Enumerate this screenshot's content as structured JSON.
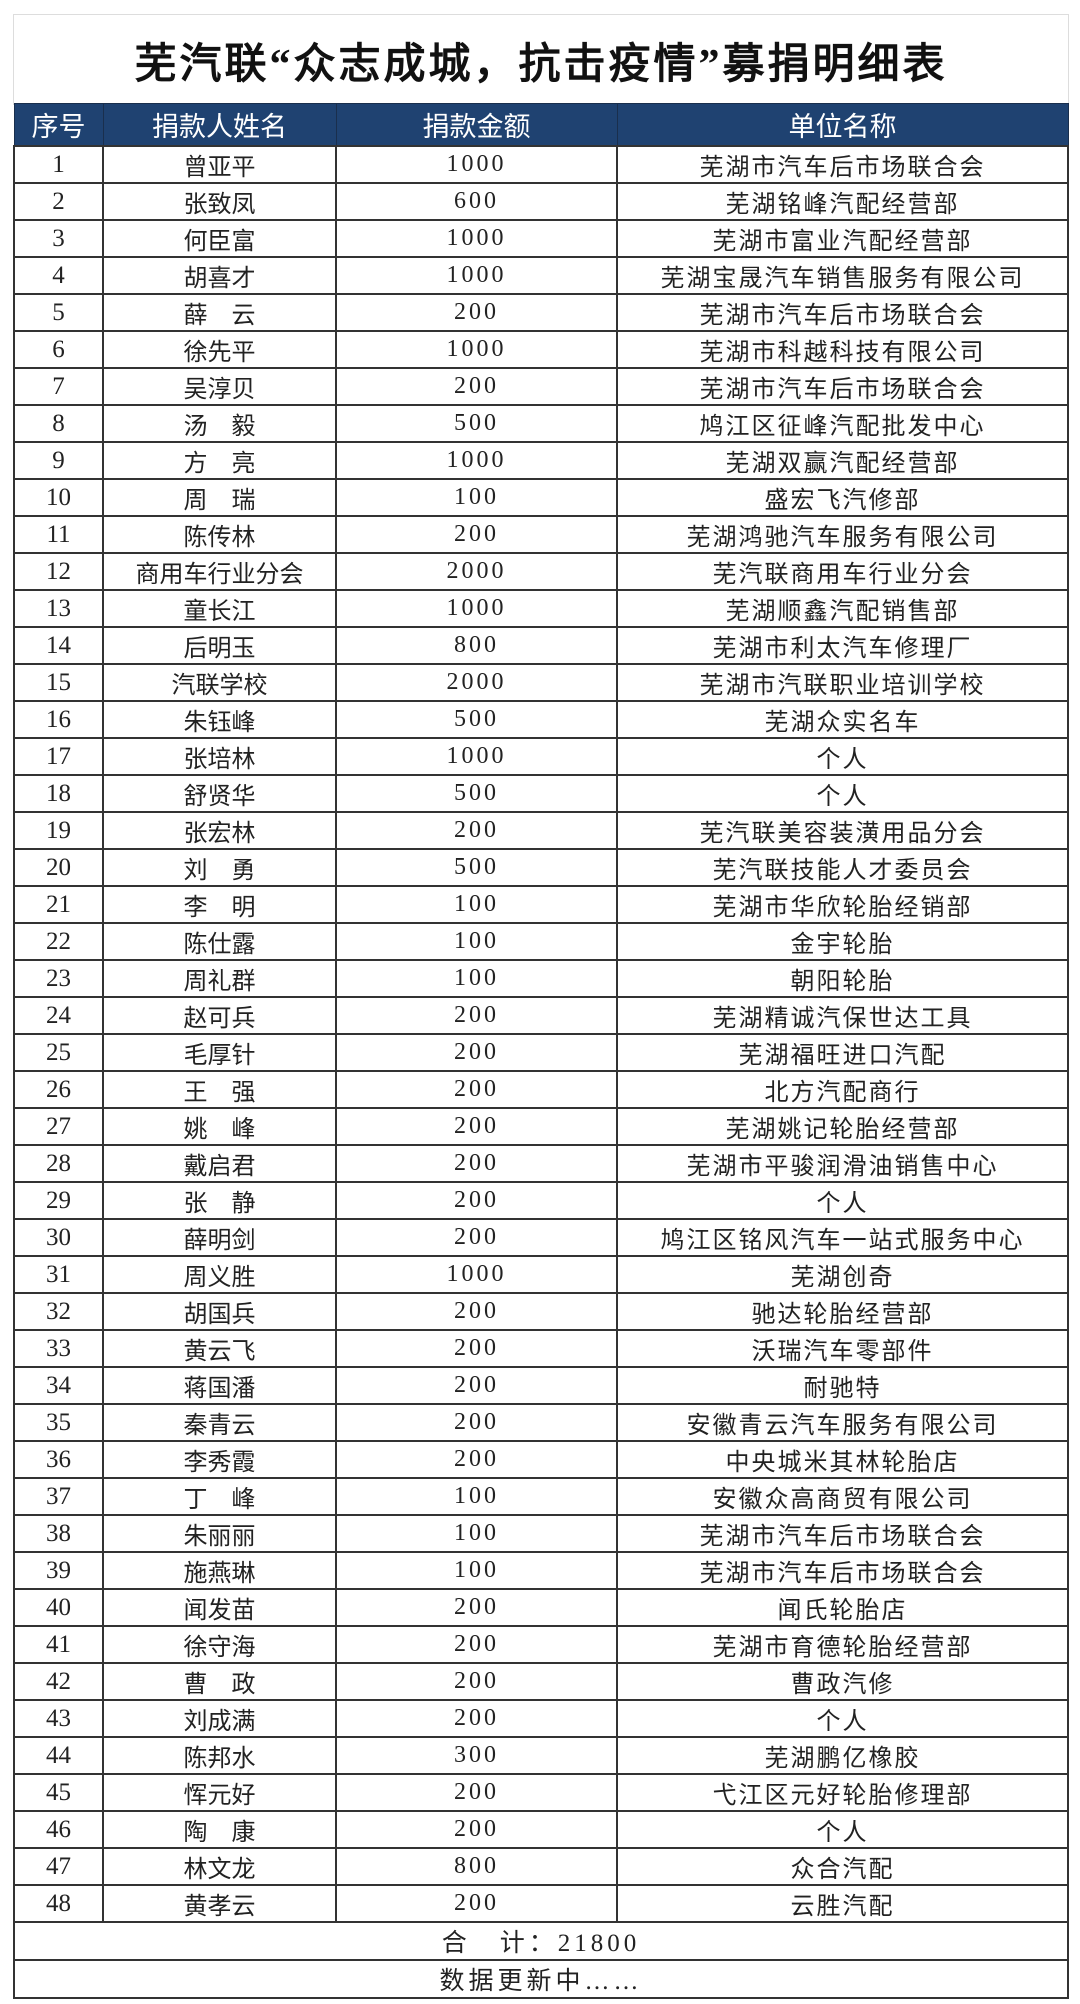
{
  "title": "芜汽联“众志成城，抗击疫情”募捐明细表",
  "columns": [
    "序号",
    "捐款人姓名",
    "捐款金额",
    "单位名称"
  ],
  "rows": [
    [
      "1",
      "曾亚平",
      "1000",
      "芜湖市汽车后市场联合会"
    ],
    [
      "2",
      "张致凤",
      "600",
      "芜湖铭峰汽配经营部"
    ],
    [
      "3",
      "何臣富",
      "1000",
      "芜湖市富业汽配经营部"
    ],
    [
      "4",
      "胡喜才",
      "1000",
      "芜湖宝晟汽车销售服务有限公司"
    ],
    [
      "5",
      "薛　云",
      "200",
      "芜湖市汽车后市场联合会"
    ],
    [
      "6",
      "徐先平",
      "1000",
      "芜湖市科越科技有限公司"
    ],
    [
      "7",
      "吴淳贝",
      "200",
      "芜湖市汽车后市场联合会"
    ],
    [
      "8",
      "汤　毅",
      "500",
      "鸠江区征峰汽配批发中心"
    ],
    [
      "9",
      "方　亮",
      "1000",
      "芜湖双赢汽配经营部"
    ],
    [
      "10",
      "周　瑞",
      "100",
      "盛宏飞汽修部"
    ],
    [
      "11",
      "陈传林",
      "200",
      "芜湖鸿驰汽车服务有限公司"
    ],
    [
      "12",
      "商用车行业分会",
      "2000",
      "芜汽联商用车行业分会"
    ],
    [
      "13",
      "童长江",
      "1000",
      "芜湖顺鑫汽配销售部"
    ],
    [
      "14",
      "后明玉",
      "800",
      "芜湖市利太汽车修理厂"
    ],
    [
      "15",
      "汽联学校",
      "2000",
      "芜湖市汽联职业培训学校"
    ],
    [
      "16",
      "朱钰峰",
      "500",
      "芜湖众实名车"
    ],
    [
      "17",
      "张培林",
      "1000",
      "个人"
    ],
    [
      "18",
      "舒贤华",
      "500",
      "个人"
    ],
    [
      "19",
      "张宏林",
      "200",
      "芜汽联美容装潢用品分会"
    ],
    [
      "20",
      "刘　勇",
      "500",
      "芜汽联技能人才委员会"
    ],
    [
      "21",
      "李　明",
      "100",
      "芜湖市华欣轮胎经销部"
    ],
    [
      "22",
      "陈仕露",
      "100",
      "金宇轮胎"
    ],
    [
      "23",
      "周礼群",
      "100",
      "朝阳轮胎"
    ],
    [
      "24",
      "赵可兵",
      "200",
      "芜湖精诚汽保世达工具"
    ],
    [
      "25",
      "毛厚针",
      "200",
      "芜湖福旺进口汽配"
    ],
    [
      "26",
      "王　强",
      "200",
      "北方汽配商行"
    ],
    [
      "27",
      "姚　峰",
      "200",
      "芜湖姚记轮胎经营部"
    ],
    [
      "28",
      "戴启君",
      "200",
      "芜湖市平骏润滑油销售中心"
    ],
    [
      "29",
      "张　静",
      "200",
      "个人"
    ],
    [
      "30",
      "薛明剑",
      "200",
      "鸠江区铭风汽车一站式服务中心"
    ],
    [
      "31",
      "周义胜",
      "1000",
      "芜湖创奇"
    ],
    [
      "32",
      "胡国兵",
      "200",
      "驰达轮胎经营部"
    ],
    [
      "33",
      "黄云飞",
      "200",
      "沃瑞汽车零部件"
    ],
    [
      "34",
      "蒋国潘",
      "200",
      "耐驰特"
    ],
    [
      "35",
      "秦青云",
      "200",
      "安徽青云汽车服务有限公司"
    ],
    [
      "36",
      "李秀霞",
      "200",
      "中央城米其林轮胎店"
    ],
    [
      "37",
      "丁　峰",
      "100",
      "安徽众高商贸有限公司"
    ],
    [
      "38",
      "朱丽丽",
      "100",
      "芜湖市汽车后市场联合会"
    ],
    [
      "39",
      "施燕琳",
      "100",
      "芜湖市汽车后市场联合会"
    ],
    [
      "40",
      "闻发苗",
      "200",
      "闻氏轮胎店"
    ],
    [
      "41",
      "徐守海",
      "200",
      "芜湖市育德轮胎经营部"
    ],
    [
      "42",
      "曹　政",
      "200",
      "曹政汽修"
    ],
    [
      "43",
      "刘成满",
      "200",
      "个人"
    ],
    [
      "44",
      "陈邦水",
      "300",
      "芜湖鹏亿橡胶"
    ],
    [
      "45",
      "恽元好",
      "200",
      "弋江区元好轮胎修理部"
    ],
    [
      "46",
      "陶　康",
      "200",
      "个人"
    ],
    [
      "47",
      "林文龙",
      "800",
      "众合汽配"
    ],
    [
      "48",
      "黄孝云",
      "200",
      "云胜汽配"
    ]
  ],
  "total": "合　计：21800",
  "footer_note": "数据更新中……",
  "colors": {
    "header_bg": "#1f4271",
    "header_text": "#ffffff"
  }
}
